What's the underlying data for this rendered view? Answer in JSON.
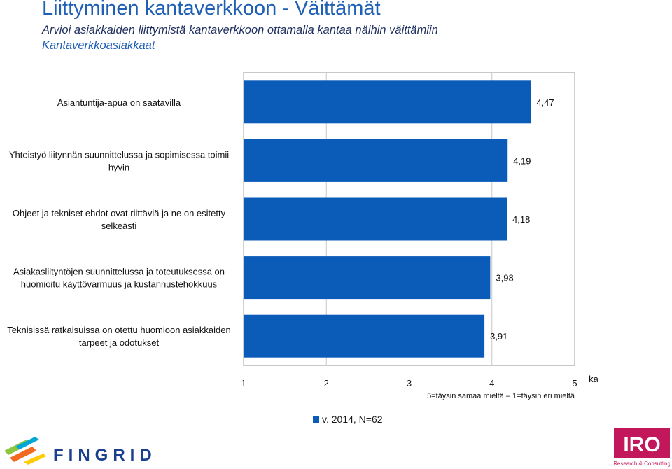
{
  "header": {
    "title": "Liittyminen kantaverkkoon - Väittämät",
    "subtitle": "Arvioi asiakkaiden liittymistä kantaverkkoon ottamalla kantaa näihin väittämiin",
    "subtitle2": "Kantaverkkoasiakkaat"
  },
  "chart_data": {
    "type": "bar",
    "orientation": "horizontal",
    "categories": [
      [
        "Asiantuntija-apua on saatavilla"
      ],
      [
        "Yhteistyö liitynnän suunnittelussa ja sopimisessa toimii",
        "hyvin"
      ],
      [
        "Ohjeet ja tekniset ehdot ovat riittäviä ja ne on esitetty",
        "selkeästi"
      ],
      [
        "Asiakasliityntöjen suunnittelussa ja toteutuksessa on",
        "huomioitu käyttövarmuus ja kustannustehokkuus"
      ],
      [
        "Teknisissä ratkaisuissa on otettu huomioon asiakkaiden",
        "tarpeet ja odotukset"
      ]
    ],
    "series": [
      {
        "name": "v. 2014, N=62",
        "values": [
          4.47,
          4.19,
          4.18,
          3.98,
          3.91
        ],
        "labels": [
          "4,47",
          "4,19",
          "4,18",
          "3,98",
          "3,91"
        ]
      }
    ],
    "xlim": [
      1,
      5
    ],
    "xticks": [
      "1",
      "2",
      "3",
      "4",
      "5"
    ],
    "axis_end_label": "ka",
    "scale_note": "5=täysin samaa mieltä – 1=täysin eri mieltä",
    "legend_position": "bottom",
    "bar_color": "#0a5cb8",
    "grid": true
  },
  "logos": {
    "left": "FINGRID",
    "right": "IRO",
    "right_tagline": "Research & Consulting"
  }
}
